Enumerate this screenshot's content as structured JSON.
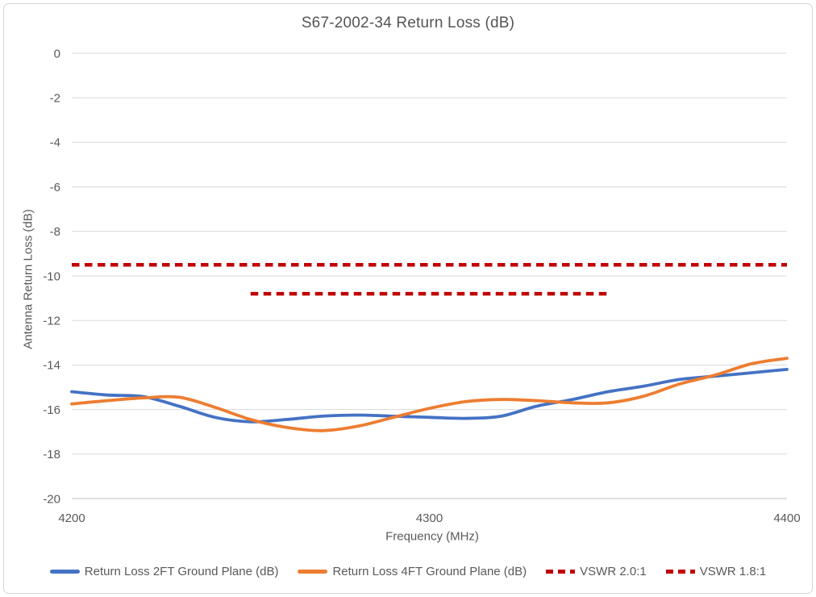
{
  "chart_data": {
    "type": "line",
    "title": "S67-2002-34 Return Loss (dB)",
    "xlabel": "Frequency (MHz)",
    "ylabel": "Antenna Return Loss (dB)",
    "xlim": [
      4200,
      4400
    ],
    "ylim": [
      -20,
      0
    ],
    "x_ticks": [
      4200,
      4300,
      4400
    ],
    "y_ticks": [
      0,
      -2,
      -4,
      -6,
      -8,
      -10,
      -12,
      -14,
      -16,
      -18,
      -20
    ],
    "grid": "horizontal",
    "legend_position": "bottom",
    "x": [
      4200,
      4210,
      4220,
      4230,
      4240,
      4250,
      4260,
      4270,
      4280,
      4290,
      4300,
      4310,
      4320,
      4330,
      4340,
      4350,
      4360,
      4370,
      4380,
      4390,
      4400
    ],
    "series": [
      {
        "name": "Return Loss 2FT Ground Plane (dB)",
        "type": "line",
        "style": "solid",
        "color": "#4472C4",
        "values": [
          -15.2,
          -15.35,
          -15.42,
          -15.85,
          -16.35,
          -16.55,
          -16.45,
          -16.3,
          -16.25,
          -16.3,
          -16.35,
          -16.4,
          -16.3,
          -15.85,
          -15.55,
          -15.2,
          -14.95,
          -14.65,
          -14.5,
          -14.35,
          -14.2
        ]
      },
      {
        "name": "Return Loss 4FT Ground Plane (dB)",
        "type": "line",
        "style": "solid",
        "color": "#ED7D31",
        "values": [
          -15.75,
          -15.6,
          -15.48,
          -15.45,
          -15.9,
          -16.45,
          -16.8,
          -16.95,
          -16.75,
          -16.35,
          -15.95,
          -15.65,
          -15.55,
          -15.6,
          -15.7,
          -15.7,
          -15.4,
          -14.85,
          -14.45,
          -13.95,
          -13.7
        ]
      },
      {
        "name": "VSWR 2.0:1",
        "type": "reference-line",
        "style": "dashed",
        "color": "#C00000",
        "value": -9.5,
        "x_span": [
          4200,
          4400
        ]
      },
      {
        "name": "VSWR 1.8:1",
        "type": "reference-line",
        "style": "dashed",
        "color": "#C00000",
        "value": -10.8,
        "x_span": [
          4250,
          4350
        ]
      }
    ],
    "colors": {
      "gridline": "#D9D9D9",
      "axis_line": "#BFBFBF",
      "text": "#595959",
      "series_blue": "#4472C4",
      "series_orange": "#ED7D31",
      "reference_red": "#C00000"
    }
  }
}
